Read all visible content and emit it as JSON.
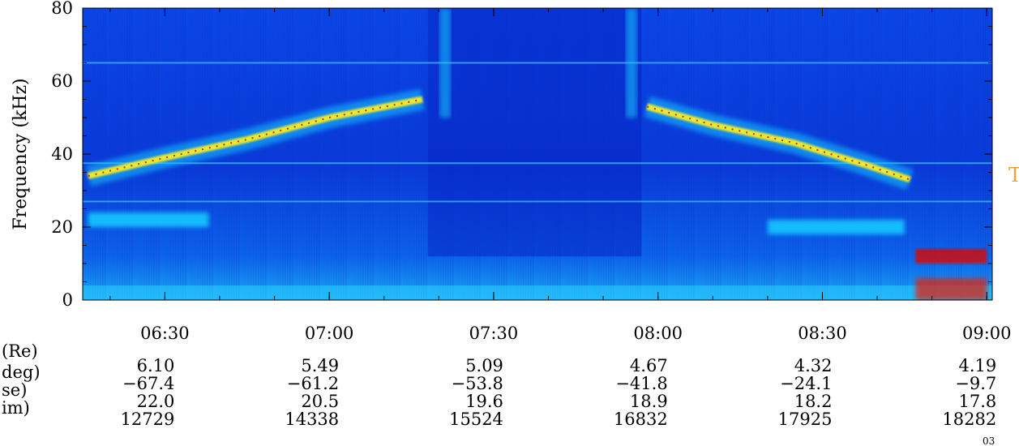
{
  "chart_data": {
    "type": "heatmap",
    "ylabel": "Frequency (kHz)",
    "ylim": [
      0,
      80
    ],
    "y_ticks": [
      "0",
      "20",
      "40",
      "60",
      "80"
    ],
    "x_ticks": [
      "06:30",
      "07:00",
      "07:30",
      "08:00",
      "08:30",
      "09:00"
    ],
    "x_range_minutes": [
      375,
      541
    ],
    "colors": {
      "background": "#0a3fe0",
      "low": "#0a2fd0",
      "mid": "#19c8ff",
      "high": "#f5f020",
      "peak": "#d01010",
      "side_mark": "#e8a33a"
    },
    "features": {
      "left_emission_band": [
        {
          "t": 376,
          "f": 34
        },
        {
          "t": 390,
          "f": 39
        },
        {
          "t": 405,
          "f": 44
        },
        {
          "t": 420,
          "f": 50
        },
        {
          "t": 437,
          "f": 55
        }
      ],
      "right_emission_band": [
        {
          "t": 478,
          "f": 53
        },
        {
          "t": 490,
          "f": 48
        },
        {
          "t": 505,
          "f": 43
        },
        {
          "t": 518,
          "f": 37
        },
        {
          "t": 526,
          "f": 33
        }
      ],
      "low_band_left": {
        "t_start": 376,
        "t_end": 398,
        "f": 22
      },
      "low_band_right": {
        "t_start": 500,
        "t_end": 525,
        "f": 20
      },
      "high_tail": {
        "t_start": 527,
        "t_end": 540,
        "f": 12
      },
      "horizontal_lines_khz": [
        65,
        37.5,
        27
      ]
    },
    "side_mark_text": "T",
    "corner_text": "03"
  },
  "ephemeris": {
    "row_labels": [
      "(Re)",
      "deg)",
      "se)",
      "im)"
    ],
    "columns": [
      {
        "time": "06:30",
        "values": [
          "6.10",
          "−67.4",
          "22.0",
          "12729"
        ]
      },
      {
        "time": "07:00",
        "values": [
          "5.49",
          "−61.2",
          "20.5",
          "14338"
        ]
      },
      {
        "time": "07:30",
        "values": [
          "5.09",
          "−53.8",
          "19.6",
          "15524"
        ]
      },
      {
        "time": "08:00",
        "values": [
          "4.67",
          "−41.8",
          "18.9",
          "16832"
        ]
      },
      {
        "time": "08:30",
        "values": [
          "4.32",
          "−24.1",
          "18.2",
          "17925"
        ]
      },
      {
        "time": "09:00",
        "values": [
          "4.19",
          "−9.7",
          "17.8",
          "18282"
        ]
      }
    ]
  }
}
